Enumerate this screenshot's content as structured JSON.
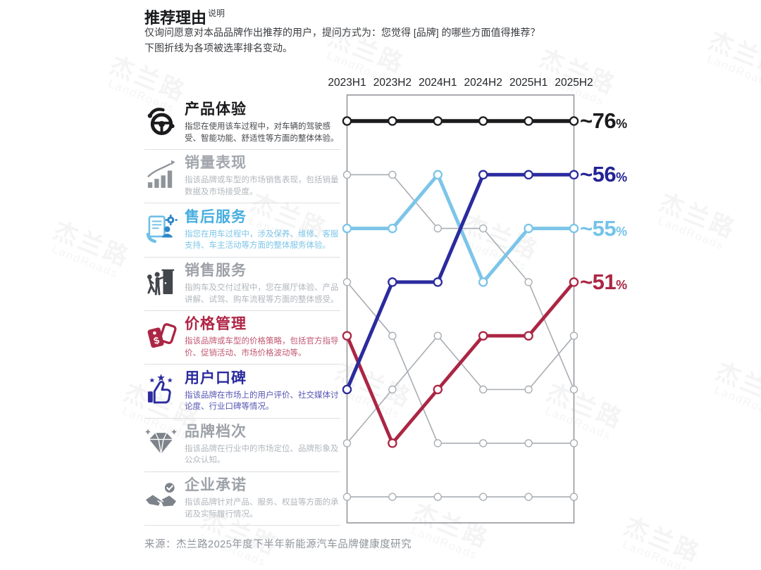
{
  "page": {
    "title": "推荐理由",
    "title_note": "说明",
    "subtitle_line1": "仅询问愿意对本品品牌作出推荐的用户，提问方式为：您觉得 [品牌] 的哪些方面值得推荐？",
    "subtitle_line2": "下图折线为各项被选率排名变动。",
    "source": "来源：杰兰路2025年度下半年新能源汽车品牌健康度研究",
    "watermark_cn": "杰兰路",
    "watermark_en": "LandRoads"
  },
  "categories": [
    {
      "name": "产品体验",
      "desc": "指您在使用该车过程中，对车辆的驾驶感受、智能功能、舒适性等方面的整体体验。",
      "accent": "#1b1b1e",
      "desc_color": "#46484c",
      "icon": "steering-wheel-icon",
      "icon_color": "#1b1b1e"
    },
    {
      "name": "销量表现",
      "desc": "指该品牌或车型的市场销售表现，包括销量数据及市场接受度。",
      "accent": "#a2a7ad",
      "desc_color": "#b2b7bc",
      "icon": "sales-bar-chart-icon",
      "icon_color": "#8e949a"
    },
    {
      "name": "售后服务",
      "desc": "指您在用车过程中，涉及保养、维修、客服支持、车主活动等方面的整体服务体验。",
      "accent": "#47aede",
      "desc_color": "#7ec6e8",
      "icon": "customer-service-icon",
      "icon_color": "#6fc0e6",
      "icon_color2": "#2e86c9"
    },
    {
      "name": "销售服务",
      "desc": "指购车及交付过程中，您在展厅体验、产品讲解、试驾、购车流程等方面的整体感受。",
      "accent": "#9da2a8",
      "desc_color": "#b2b7bc",
      "icon": "door-entry-icon",
      "icon_color": "#43474d"
    },
    {
      "name": "价格管理",
      "desc": "指该品牌或车型的价格策略，包括官方指导价、促销活动、市场价格波动等。",
      "accent": "#b02545",
      "desc_color": "#c25a72",
      "icon": "price-tag-icon",
      "icon_color": "#ab2644"
    },
    {
      "name": "用户口碑",
      "desc": "指该品牌在市场上的用户评价、社交媒体讨论度、行业口碑等情况。",
      "accent": "#2b2b9e",
      "desc_color": "#5656b4",
      "icon": "thumbs-up-icon",
      "icon_color": "#2b2b9e"
    },
    {
      "name": "品牌档次",
      "desc": "指该品牌在行业中的市场定位、品牌形象及公众认知。",
      "accent": "#9da2a8",
      "desc_color": "#b2b7bc",
      "icon": "diamond-icon",
      "icon_color": "#7d838a"
    },
    {
      "name": "企业承诺",
      "desc": "指该品牌针对产品、服务、权益等方面的承诺及实际履行情况。",
      "accent": "#9da2a8",
      "desc_color": "#b2b7bc",
      "icon": "handshake-icon",
      "icon_color": "#7d838a"
    }
  ],
  "chart_data": {
    "type": "line",
    "subtype": "bump-rank",
    "title": "推荐理由 — 各项被选率排名变动",
    "x_labels": [
      "2023H1",
      "2023H2",
      "2024H1",
      "2024H2",
      "2025H1",
      "2025H2"
    ],
    "rank_axis": {
      "best": 1,
      "worst": 8,
      "inverted": true
    },
    "grid": false,
    "series": [
      {
        "name": "产品体验",
        "color": "#1b1b1e",
        "line_width": 5.5,
        "z": 5,
        "ranks": [
          1,
          1,
          1,
          1,
          1,
          1
        ],
        "end_label": "~76%",
        "end_label_color": "#1b1b1e"
      },
      {
        "name": "销量表现",
        "color": "#a9aeb3",
        "line_width": 1.6,
        "z": 1,
        "ranks": [
          2,
          2,
          3,
          3,
          4,
          6
        ]
      },
      {
        "name": "售后服务",
        "color": "#7cc5e9",
        "line_width": 5,
        "z": 2,
        "ranks": [
          3,
          3,
          2,
          4,
          3,
          3
        ],
        "end_label": "~55%",
        "end_label_color": "#74c3e8"
      },
      {
        "name": "销售服务",
        "color": "#a9aeb3",
        "line_width": 1.6,
        "z": 1,
        "ranks": [
          4,
          5,
          7,
          7,
          7,
          7
        ]
      },
      {
        "name": "价格管理",
        "color": "#ab2644",
        "line_width": 4.8,
        "z": 3,
        "ranks": [
          5,
          7,
          6,
          5,
          5,
          4
        ],
        "end_label": "~51%",
        "end_label_color": "#ab2644"
      },
      {
        "name": "用户口碑",
        "color": "#2b2b9e",
        "line_width": 5,
        "z": 4,
        "ranks": [
          6,
          4,
          4,
          2,
          2,
          2
        ],
        "end_label": "~56%",
        "end_label_color": "#232394"
      },
      {
        "name": "品牌档次",
        "color": "#a9aeb3",
        "line_width": 1.6,
        "z": 1,
        "ranks": [
          7,
          6,
          5,
          6,
          6,
          5
        ]
      },
      {
        "name": "企业承诺",
        "color": "#a9aeb3",
        "line_width": 1.6,
        "z": 1,
        "ranks": [
          8,
          8,
          8,
          8,
          8,
          8
        ]
      }
    ]
  }
}
